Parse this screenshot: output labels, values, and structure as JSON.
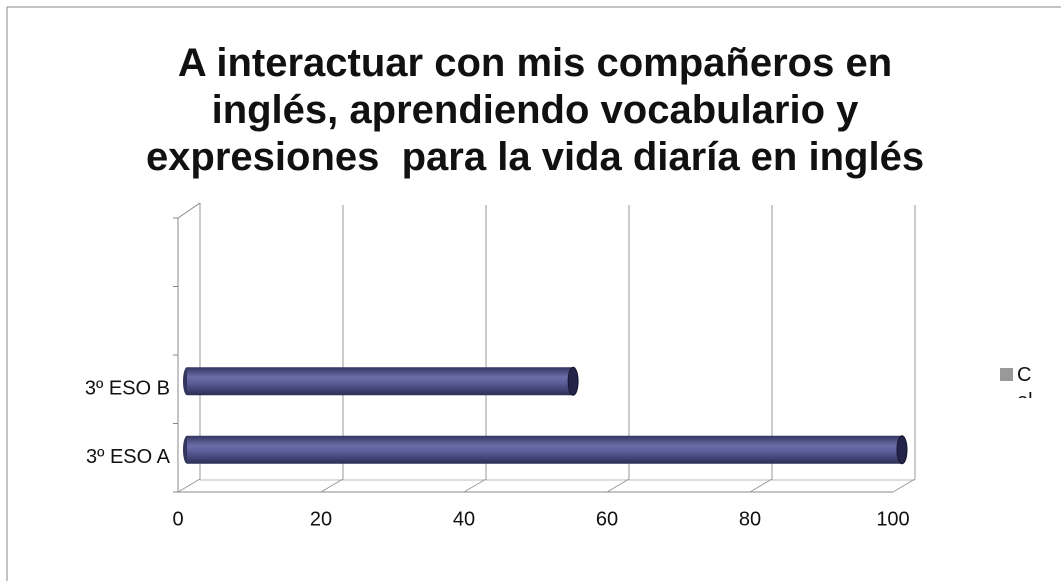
{
  "chart_data": {
    "type": "bar3d_horizontal",
    "title": "A interactuar con mis compañeros en\ninglés, aprendiendo vocabulario y\nexpresiones  para la vida diaría en inglés",
    "categories": [
      "3º ESO A",
      "3º ESO B",
      null,
      null
    ],
    "series": [
      {
        "name": "Col",
        "color": "#55588f",
        "values": [
          100,
          54,
          null,
          null
        ]
      }
    ],
    "legend_color": "#999999",
    "xlim": [
      0,
      100
    ],
    "xticks": [
      0,
      20,
      40,
      60,
      80,
      100
    ],
    "grid": true,
    "legend": "right"
  }
}
